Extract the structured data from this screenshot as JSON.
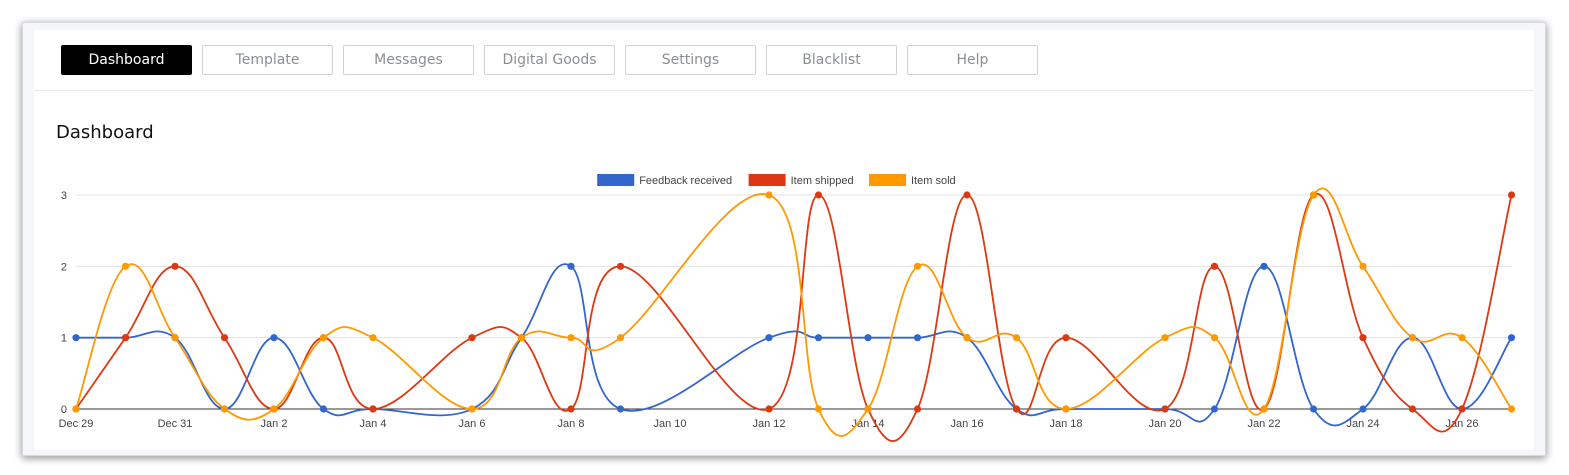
{
  "tabs": [
    {
      "label": "Dashboard",
      "active": true
    },
    {
      "label": "Template",
      "active": false
    },
    {
      "label": "Messages",
      "active": false
    },
    {
      "label": "Digital Goods",
      "active": false
    },
    {
      "label": "Settings",
      "active": false
    },
    {
      "label": "Blacklist",
      "active": false
    },
    {
      "label": "Help",
      "active": false
    }
  ],
  "page": {
    "title": "Dashboard"
  },
  "chart_data": {
    "type": "line",
    "x": [
      "Dec 29",
      "Dec 30",
      "Dec 31",
      "Jan 1",
      "Jan 2",
      "Jan 3",
      "Jan 4",
      "Jan 5",
      "Jan 6",
      "Jan 7",
      "Jan 8",
      "Jan 9",
      "Jan 10",
      "Jan 11",
      "Jan 12",
      "Jan 13",
      "Jan 14",
      "Jan 15",
      "Jan 16",
      "Jan 17",
      "Jan 18",
      "Jan 19",
      "Jan 20",
      "Jan 21",
      "Jan 22",
      "Jan 23",
      "Jan 24",
      "Jan 25",
      "Jan 26",
      "Jan 27"
    ],
    "x_tick_labels": [
      "Dec 29",
      "Dec 31",
      "Jan 2",
      "Jan 4",
      "Jan 6",
      "Jan 8",
      "Jan 10",
      "Jan 12",
      "Jan 14",
      "Jan 16",
      "Jan 18",
      "Jan 20",
      "Jan 22",
      "Jan 24",
      "Jan 26"
    ],
    "y_ticks": [
      "0",
      "1",
      "2",
      "3"
    ],
    "ylim": [
      0,
      3
    ],
    "legend_position": "top-center",
    "grid": true,
    "series": [
      {
        "name": "Feedback received",
        "color": "#3366cc",
        "values": [
          1,
          1,
          1,
          0,
          1,
          0,
          0,
          null,
          0,
          1,
          2,
          0,
          null,
          null,
          1,
          1,
          1,
          1,
          1,
          0,
          0,
          null,
          0,
          0,
          2,
          0,
          0,
          1,
          0,
          1
        ]
      },
      {
        "name": "Item shipped",
        "color": "#dc3912",
        "values": [
          0,
          1,
          2,
          1,
          0,
          1,
          0,
          null,
          1,
          1,
          0,
          2,
          null,
          null,
          0,
          3,
          0,
          0,
          3,
          0,
          1,
          null,
          0,
          2,
          0,
          3,
          1,
          0,
          0,
          3
        ]
      },
      {
        "name": "Item sold",
        "color": "#ff9900",
        "values": [
          0,
          2,
          1,
          0,
          0,
          1,
          1,
          null,
          0,
          1,
          1,
          1,
          null,
          null,
          3,
          0,
          0,
          2,
          1,
          1,
          0,
          null,
          1,
          1,
          0,
          3,
          2,
          1,
          1,
          0
        ]
      }
    ]
  }
}
